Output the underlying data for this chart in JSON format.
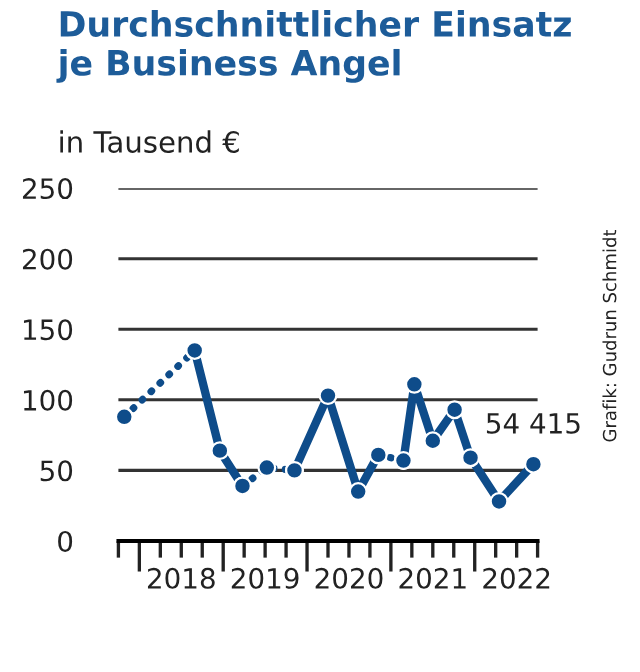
{
  "chart_data": {
    "type": "line",
    "title": "Durchschnittlicher Einsatz\nje Business Angel",
    "ylabel": "in Tausend €",
    "series": [
      {
        "color": "#0e4c8a",
        "line_style": "dotted",
        "x": [
          2017.82,
          2018.66
        ],
        "values": [
          88,
          135
        ]
      },
      {
        "color": "#0e4c8a",
        "line_style": "solid",
        "x": [
          2018.66,
          2018.96,
          2019.23
        ],
        "values": [
          135,
          64,
          39
        ]
      },
      {
        "color": "#0e4c8a",
        "line_style": "dotted",
        "x": [
          2019.23,
          2019.52,
          2019.85
        ],
        "values": [
          39,
          52,
          50
        ]
      },
      {
        "color": "#0e4c8a",
        "line_style": "solid",
        "x": [
          2019.85,
          2020.25,
          2020.61,
          2020.85
        ],
        "values": [
          50,
          103,
          35,
          61
        ]
      },
      {
        "color": "#0e4c8a",
        "line_style": "dotted",
        "x": [
          2020.85,
          2021.15
        ],
        "values": [
          61,
          57
        ]
      },
      {
        "color": "#0e4c8a",
        "line_style": "solid",
        "x": [
          2021.15,
          2021.28,
          2021.5,
          2021.76,
          2021.95,
          2022.29,
          2022.7
        ],
        "values": [
          57,
          111,
          71,
          93,
          59,
          28,
          54.415
        ]
      }
    ],
    "marker": "circle",
    "xlim": [
      2017.75,
      2022.75
    ],
    "xticks": [
      {
        "value": 2017.75,
        "label": null
      },
      {
        "value": 2018,
        "label": null
      },
      {
        "value": 2018.25,
        "label": null
      },
      {
        "value": 2018.5,
        "label": "2018"
      },
      {
        "value": 2018.75,
        "label": null
      },
      {
        "value": 2019,
        "label": null
      },
      {
        "value": 2019.25,
        "label": null
      },
      {
        "value": 2019.5,
        "label": "2019"
      },
      {
        "value": 2019.75,
        "label": null
      },
      {
        "value": 2020,
        "label": null
      },
      {
        "value": 2020.25,
        "label": null
      },
      {
        "value": 2020.5,
        "label": "2020"
      },
      {
        "value": 2020.75,
        "label": null
      },
      {
        "value": 2021,
        "label": null
      },
      {
        "value": 2021.25,
        "label": null
      },
      {
        "value": 2021.5,
        "label": "2021"
      },
      {
        "value": 2021.75,
        "label": null
      },
      {
        "value": 2022,
        "label": null
      },
      {
        "value": 2022.25,
        "label": null
      },
      {
        "value": 2022.5,
        "label": "2022"
      },
      {
        "value": 2022.75,
        "label": null
      }
    ],
    "ylim": [
      0,
      250
    ],
    "yticks": [
      0,
      50,
      100,
      150,
      200,
      250
    ],
    "grid": "y",
    "annotations": [
      {
        "text": "54 415",
        "x": 2022.7,
        "y": 54.415
      },
      "Grafik: Gudrun Schmidt"
    ]
  }
}
